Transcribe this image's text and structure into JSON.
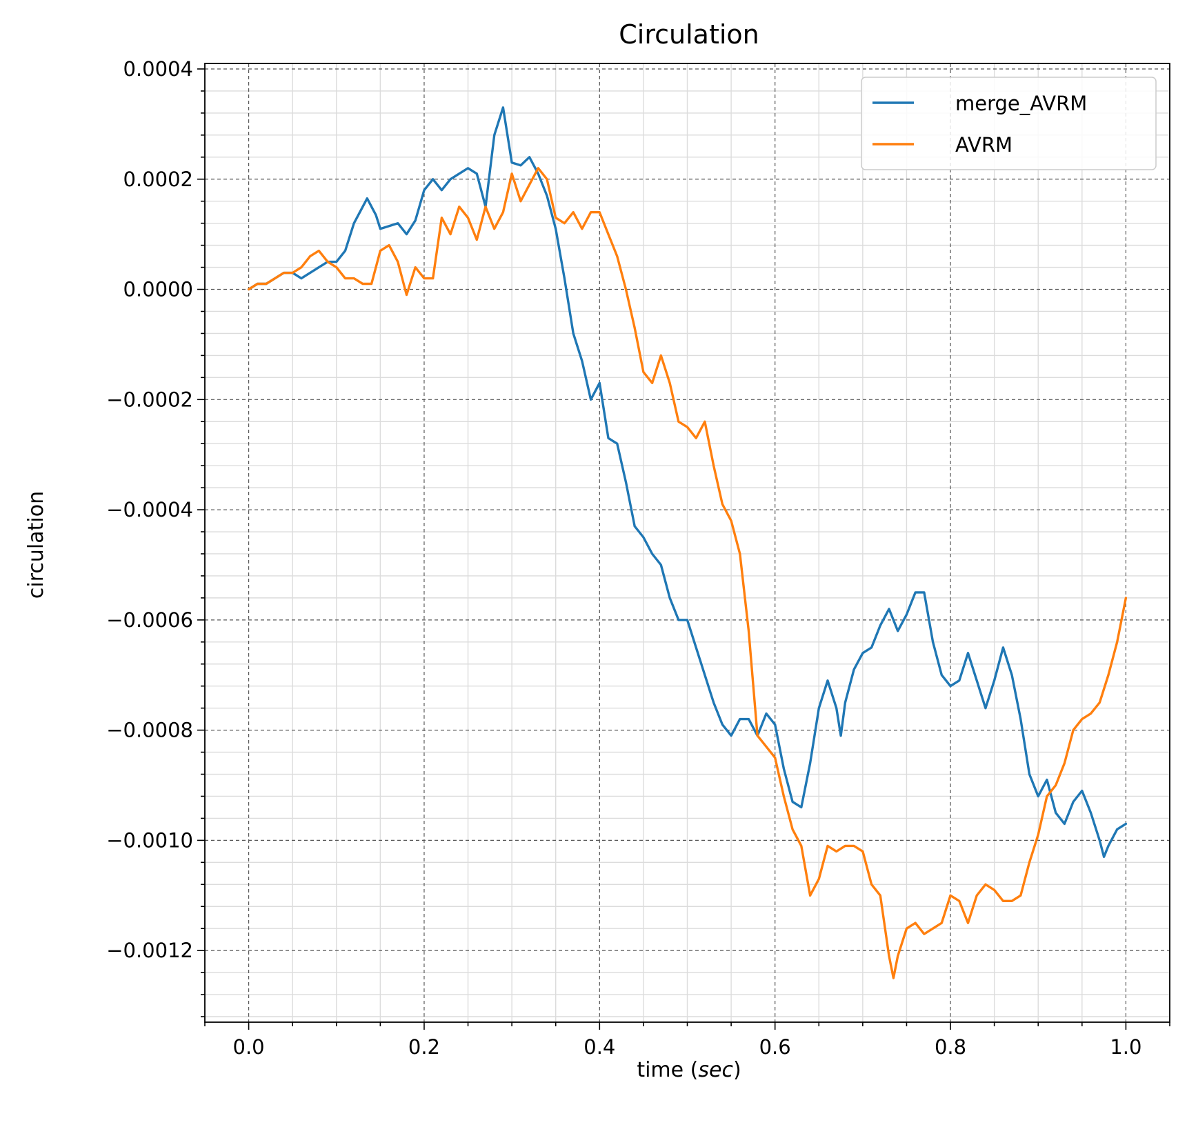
{
  "chart_data": {
    "type": "line",
    "title": "Circulation",
    "xlabel": {
      "main": "time (",
      "italic": "sec",
      "end": ")"
    },
    "ylabel": "circulation",
    "xlim": [
      -0.05,
      1.05
    ],
    "ylim": [
      -0.00133,
      0.00041
    ],
    "x_ticks": [
      0.0,
      0.2,
      0.4,
      0.6,
      0.8,
      1.0
    ],
    "x_tick_labels": [
      "0.0",
      "0.2",
      "0.4",
      "0.6",
      "0.8",
      "1.0"
    ],
    "y_ticks": [
      0.0004,
      0.0002,
      0.0,
      -0.0002,
      -0.0004,
      -0.0006,
      -0.0008,
      -0.001,
      -0.0012
    ],
    "y_tick_labels": [
      "0.0004",
      "0.0002",
      "0.0000",
      "−0.0002",
      "−0.0004",
      "−0.0006",
      "−0.0008",
      "−0.0010",
      "−0.0012"
    ],
    "grid": true,
    "legend": "top-right",
    "series": [
      {
        "name": "merge_AVRM",
        "color": "#1f77b4",
        "points": [
          [
            0.0,
            0.0
          ],
          [
            0.01,
            1e-05
          ],
          [
            0.02,
            1e-05
          ],
          [
            0.03,
            2e-05
          ],
          [
            0.04,
            3e-05
          ],
          [
            0.05,
            3e-05
          ],
          [
            0.06,
            2e-05
          ],
          [
            0.07,
            3e-05
          ],
          [
            0.08,
            4e-05
          ],
          [
            0.09,
            5e-05
          ],
          [
            0.1,
            5e-05
          ],
          [
            0.11,
            7e-05
          ],
          [
            0.12,
            0.00012
          ],
          [
            0.135,
            0.000165
          ],
          [
            0.145,
            0.000135
          ],
          [
            0.15,
            0.00011
          ],
          [
            0.16,
            0.000115
          ],
          [
            0.17,
            0.00012
          ],
          [
            0.18,
            0.0001
          ],
          [
            0.19,
            0.000125
          ],
          [
            0.2,
            0.00018
          ],
          [
            0.21,
            0.0002
          ],
          [
            0.22,
            0.00018
          ],
          [
            0.23,
            0.0002
          ],
          [
            0.24,
            0.00021
          ],
          [
            0.25,
            0.00022
          ],
          [
            0.26,
            0.00021
          ],
          [
            0.27,
            0.00015
          ],
          [
            0.28,
            0.00028
          ],
          [
            0.29,
            0.00033
          ],
          [
            0.3,
            0.00023
          ],
          [
            0.31,
            0.000225
          ],
          [
            0.32,
            0.00024
          ],
          [
            0.33,
            0.00021
          ],
          [
            0.34,
            0.00017
          ],
          [
            0.35,
            0.00011
          ],
          [
            0.36,
            2e-05
          ],
          [
            0.37,
            -8e-05
          ],
          [
            0.38,
            -0.00013
          ],
          [
            0.39,
            -0.0002
          ],
          [
            0.4,
            -0.00017
          ],
          [
            0.41,
            -0.00027
          ],
          [
            0.42,
            -0.00028
          ],
          [
            0.43,
            -0.00035
          ],
          [
            0.44,
            -0.00043
          ],
          [
            0.45,
            -0.00045
          ],
          [
            0.46,
            -0.00048
          ],
          [
            0.47,
            -0.0005
          ],
          [
            0.48,
            -0.00056
          ],
          [
            0.49,
            -0.0006
          ],
          [
            0.5,
            -0.0006
          ],
          [
            0.51,
            -0.00065
          ],
          [
            0.52,
            -0.0007
          ],
          [
            0.53,
            -0.00075
          ],
          [
            0.54,
            -0.00079
          ],
          [
            0.55,
            -0.00081
          ],
          [
            0.56,
            -0.00078
          ],
          [
            0.57,
            -0.00078
          ],
          [
            0.58,
            -0.00081
          ],
          [
            0.59,
            -0.00077
          ],
          [
            0.6,
            -0.00079
          ],
          [
            0.61,
            -0.00087
          ],
          [
            0.62,
            -0.00093
          ],
          [
            0.63,
            -0.00094
          ],
          [
            0.64,
            -0.00086
          ],
          [
            0.65,
            -0.00076
          ],
          [
            0.66,
            -0.00071
          ],
          [
            0.67,
            -0.00076
          ],
          [
            0.675,
            -0.00081
          ],
          [
            0.68,
            -0.00075
          ],
          [
            0.69,
            -0.00069
          ],
          [
            0.7,
            -0.00066
          ],
          [
            0.71,
            -0.00065
          ],
          [
            0.72,
            -0.00061
          ],
          [
            0.73,
            -0.00058
          ],
          [
            0.74,
            -0.00062
          ],
          [
            0.75,
            -0.00059
          ],
          [
            0.76,
            -0.00055
          ],
          [
            0.77,
            -0.00055
          ],
          [
            0.78,
            -0.00064
          ],
          [
            0.79,
            -0.0007
          ],
          [
            0.8,
            -0.00072
          ],
          [
            0.81,
            -0.00071
          ],
          [
            0.82,
            -0.00066
          ],
          [
            0.83,
            -0.00071
          ],
          [
            0.84,
            -0.00076
          ],
          [
            0.85,
            -0.00071
          ],
          [
            0.86,
            -0.00065
          ],
          [
            0.87,
            -0.0007
          ],
          [
            0.88,
            -0.00078
          ],
          [
            0.89,
            -0.00088
          ],
          [
            0.9,
            -0.00092
          ],
          [
            0.91,
            -0.00089
          ],
          [
            0.92,
            -0.00095
          ],
          [
            0.93,
            -0.00097
          ],
          [
            0.94,
            -0.00093
          ],
          [
            0.95,
            -0.00091
          ],
          [
            0.96,
            -0.00095
          ],
          [
            0.97,
            -0.001
          ],
          [
            0.975,
            -0.00103
          ],
          [
            0.98,
            -0.00101
          ],
          [
            0.99,
            -0.00098
          ],
          [
            1.0,
            -0.00097
          ]
        ]
      },
      {
        "name": "AVRM",
        "color": "#ff7f0e",
        "points": [
          [
            0.0,
            0.0
          ],
          [
            0.01,
            1e-05
          ],
          [
            0.02,
            1e-05
          ],
          [
            0.03,
            2e-05
          ],
          [
            0.04,
            3e-05
          ],
          [
            0.05,
            3e-05
          ],
          [
            0.06,
            4e-05
          ],
          [
            0.07,
            6e-05
          ],
          [
            0.08,
            7e-05
          ],
          [
            0.09,
            5e-05
          ],
          [
            0.1,
            4e-05
          ],
          [
            0.11,
            2e-05
          ],
          [
            0.12,
            2e-05
          ],
          [
            0.13,
            1e-05
          ],
          [
            0.14,
            1e-05
          ],
          [
            0.15,
            7e-05
          ],
          [
            0.16,
            8e-05
          ],
          [
            0.17,
            5e-05
          ],
          [
            0.18,
            -1e-05
          ],
          [
            0.19,
            4e-05
          ],
          [
            0.2,
            2e-05
          ],
          [
            0.21,
            2e-05
          ],
          [
            0.22,
            0.00013
          ],
          [
            0.23,
            0.0001
          ],
          [
            0.24,
            0.00015
          ],
          [
            0.25,
            0.00013
          ],
          [
            0.26,
            9e-05
          ],
          [
            0.27,
            0.00015
          ],
          [
            0.28,
            0.00011
          ],
          [
            0.29,
            0.00014
          ],
          [
            0.3,
            0.00021
          ],
          [
            0.31,
            0.00016
          ],
          [
            0.32,
            0.00019
          ],
          [
            0.33,
            0.00022
          ],
          [
            0.34,
            0.0002
          ],
          [
            0.35,
            0.00013
          ],
          [
            0.36,
            0.00012
          ],
          [
            0.37,
            0.00014
          ],
          [
            0.38,
            0.00011
          ],
          [
            0.39,
            0.00014
          ],
          [
            0.4,
            0.00014
          ],
          [
            0.41,
            0.0001
          ],
          [
            0.42,
            6e-05
          ],
          [
            0.43,
            0.0
          ],
          [
            0.44,
            -7e-05
          ],
          [
            0.45,
            -0.00015
          ],
          [
            0.46,
            -0.00017
          ],
          [
            0.47,
            -0.00012
          ],
          [
            0.48,
            -0.00017
          ],
          [
            0.49,
            -0.00024
          ],
          [
            0.5,
            -0.00025
          ],
          [
            0.51,
            -0.00027
          ],
          [
            0.52,
            -0.00024
          ],
          [
            0.53,
            -0.00032
          ],
          [
            0.54,
            -0.00039
          ],
          [
            0.55,
            -0.00042
          ],
          [
            0.56,
            -0.00048
          ],
          [
            0.57,
            -0.00062
          ],
          [
            0.58,
            -0.00081
          ],
          [
            0.59,
            -0.00083
          ],
          [
            0.6,
            -0.00085
          ],
          [
            0.61,
            -0.00092
          ],
          [
            0.62,
            -0.00098
          ],
          [
            0.63,
            -0.00101
          ],
          [
            0.64,
            -0.0011
          ],
          [
            0.65,
            -0.00107
          ],
          [
            0.66,
            -0.00101
          ],
          [
            0.67,
            -0.00102
          ],
          [
            0.68,
            -0.00101
          ],
          [
            0.69,
            -0.00101
          ],
          [
            0.7,
            -0.00102
          ],
          [
            0.71,
            -0.00108
          ],
          [
            0.72,
            -0.0011
          ],
          [
            0.73,
            -0.00121
          ],
          [
            0.735,
            -0.00125
          ],
          [
            0.74,
            -0.00121
          ],
          [
            0.75,
            -0.00116
          ],
          [
            0.76,
            -0.00115
          ],
          [
            0.77,
            -0.00117
          ],
          [
            0.78,
            -0.00116
          ],
          [
            0.79,
            -0.00115
          ],
          [
            0.8,
            -0.0011
          ],
          [
            0.81,
            -0.00111
          ],
          [
            0.82,
            -0.00115
          ],
          [
            0.83,
            -0.0011
          ],
          [
            0.84,
            -0.00108
          ],
          [
            0.85,
            -0.00109
          ],
          [
            0.86,
            -0.00111
          ],
          [
            0.87,
            -0.00111
          ],
          [
            0.88,
            -0.0011
          ],
          [
            0.89,
            -0.00104
          ],
          [
            0.9,
            -0.00099
          ],
          [
            0.91,
            -0.00092
          ],
          [
            0.92,
            -0.0009
          ],
          [
            0.93,
            -0.00086
          ],
          [
            0.94,
            -0.0008
          ],
          [
            0.95,
            -0.00078
          ],
          [
            0.96,
            -0.00077
          ],
          [
            0.97,
            -0.00075
          ],
          [
            0.98,
            -0.0007
          ],
          [
            0.99,
            -0.00064
          ],
          [
            1.0,
            -0.00056
          ]
        ]
      }
    ]
  }
}
